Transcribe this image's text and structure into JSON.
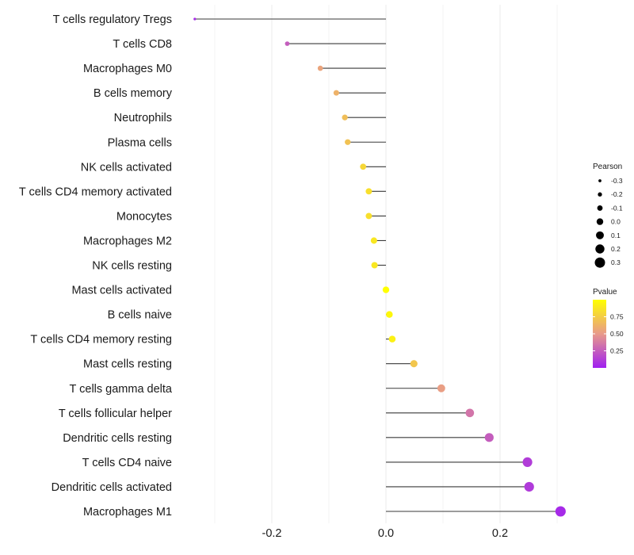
{
  "chart_data": {
    "type": "lollipop",
    "title": "",
    "xlabel": "",
    "ylabel": "",
    "xlim": [
      -0.37,
      0.34
    ],
    "x_ticks": [
      -0.2,
      0.0,
      0.2
    ],
    "x_tick_labels": [
      "-0.2",
      "0.0",
      "0.2"
    ],
    "grid": true,
    "categories": [
      "T cells regulatory  Tregs",
      "T cells CD8",
      "Macrophages M0",
      "B cells memory",
      "Neutrophils",
      "Plasma cells",
      "NK cells activated",
      "T cells CD4 memory activated",
      "Monocytes",
      "Macrophages M2",
      "NK cells resting",
      "Mast cells activated",
      "B cells naive",
      "T cells CD4 memory resting",
      "Mast cells resting",
      "T cells gamma delta",
      "T cells follicular helper",
      "Dendritic cells resting",
      "T cells CD4 naive",
      "Dendritic cells activated",
      "Macrophages M1"
    ],
    "values": [
      -0.335,
      -0.173,
      -0.115,
      -0.087,
      -0.072,
      -0.067,
      -0.04,
      -0.03,
      -0.03,
      -0.021,
      -0.02,
      0.0,
      0.006,
      0.011,
      0.049,
      0.097,
      0.147,
      0.181,
      0.248,
      0.251,
      0.306
    ],
    "pvalues": [
      0.05,
      0.25,
      0.55,
      0.62,
      0.68,
      0.7,
      0.8,
      0.84,
      0.84,
      0.88,
      0.88,
      1.0,
      0.96,
      0.93,
      0.72,
      0.52,
      0.35,
      0.25,
      0.12,
      0.11,
      0.04
    ],
    "size_legend": {
      "title": "Pearson",
      "labels": [
        "-0.3",
        "-0.2",
        "-0.1",
        "0.0",
        "0.1",
        "0.2",
        "0.3"
      ],
      "values": [
        -0.3,
        -0.2,
        -0.1,
        0.0,
        0.1,
        0.2,
        0.3
      ]
    },
    "color_legend": {
      "title": "Pvalue",
      "labels": [
        "0.75",
        "0.50",
        "0.25"
      ],
      "values": [
        0.75,
        0.5,
        0.25
      ],
      "range": [
        0.0,
        1.0
      ],
      "low_color": "#a020f0",
      "mid_color": "#e89a8a",
      "high_color": "#ffff00"
    }
  }
}
